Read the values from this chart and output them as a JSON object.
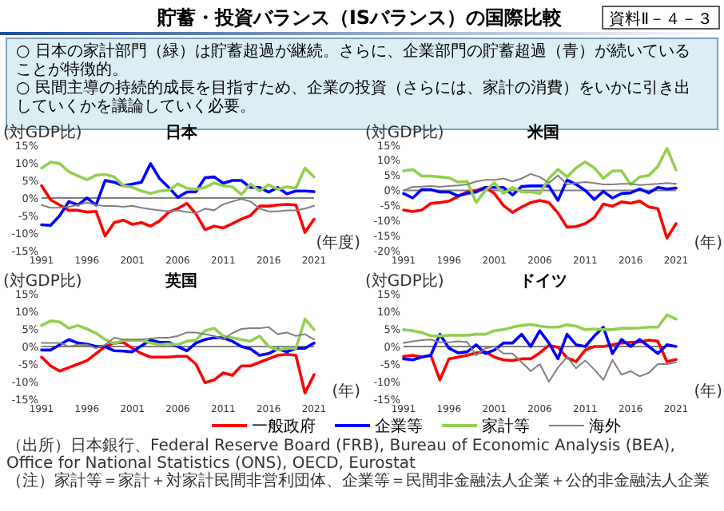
{
  "chart_data": [
    {
      "type": "other",
      "title": "貯蓄・投資バランス（ISバランス）の国際比較",
      "annotations": [
        "資料Ⅱ－４－３",
        "○ 日本の家計部門（緑）は貯蓄超過が継続。さらに、企業部門の貯蓄超過（青）が続いていることが特徴的。",
        "○ 民間主導の持続的成長を目指すため、企業の投資（さらには、家計の消費）をいかに引き出していくかを議論していく必要。",
        "（出所）日本銀行、Federal Reserve Board (FRB), Bureau of Economic Analysis (BEA), Office for National Statistics (ONS), OECD, Eurostat",
        "（注）家計等＝家計＋対家計民間非営利団体、企業等＝民間非金融法人企業＋公的非金融法人企業"
      ]
    },
    {
      "type": "line",
      "title": "日本",
      "ylabel": "(対GDP比)",
      "xlabel": "(年度)",
      "legend": "bottom",
      "x": [
        1991,
        1992,
        1993,
        1994,
        1995,
        1996,
        1997,
        1998,
        1999,
        2000,
        2001,
        2002,
        2003,
        2004,
        2005,
        2006,
        2007,
        2008,
        2009,
        2010,
        2011,
        2012,
        2013,
        2014,
        2015,
        2016,
        2017,
        2018,
        2019,
        2020,
        2021
      ],
      "xlim": [
        1991,
        2021
      ],
      "xticks": [
        1991,
        1996,
        2001,
        2006,
        2011,
        2016,
        2021
      ],
      "ylim": [
        -15,
        15
      ],
      "yticks": [
        {
          "value": -15,
          "label": "-15%"
        },
        {
          "value": -10,
          "label": "-10%"
        },
        {
          "value": -5,
          "label": "-5%"
        },
        {
          "value": 0,
          "label": "0%"
        },
        {
          "value": 5,
          "label": "5%"
        },
        {
          "value": 10,
          "label": "10%"
        },
        {
          "value": 15,
          "label": "15%"
        }
      ],
      "ref_lines": [
        {
          "axis": "y",
          "value": 0,
          "color": "#808080"
        }
      ],
      "series": [
        {
          "name": "一般政府",
          "color": "#ff0000",
          "values": [
            3.5,
            -0.5,
            -2,
            -3.5,
            -3.5,
            -4,
            -3.8,
            -10.8,
            -7,
            -6.3,
            -7.5,
            -7,
            -8,
            -6.5,
            -4,
            -3,
            -1.5,
            -4.5,
            -9,
            -8,
            -8.5,
            -7.3,
            -6,
            -5,
            -2.3,
            -2.3,
            -2,
            -1.8,
            -2,
            -9.8,
            -6
          ]
        },
        {
          "name": "企業等",
          "color": "#0000ff",
          "values": [
            -7.6,
            -7.8,
            -5,
            -1,
            -2,
            0,
            -2,
            5,
            4.5,
            3.5,
            4,
            4.5,
            9.8,
            5.5,
            3,
            0.2,
            1.7,
            1.8,
            5.8,
            6,
            4.2,
            5,
            5,
            3,
            3,
            1.7,
            3,
            1.2,
            2,
            2,
            1.8
          ]
        },
        {
          "name": "家計等",
          "color": "#92d050",
          "values": [
            8.5,
            10.2,
            9.8,
            7.5,
            6.3,
            5.2,
            6.5,
            6.7,
            6,
            3.5,
            3,
            2,
            1.3,
            2,
            2.2,
            4,
            2.8,
            2.5,
            3,
            4.3,
            3.5,
            3.2,
            1,
            4,
            2,
            3.8,
            2.5,
            3.2,
            2.8,
            8.5,
            6
          ]
        },
        {
          "name": "海外",
          "color": "#808080",
          "values": [
            -2,
            -2.8,
            -2.7,
            -2.5,
            -2,
            -1.3,
            -2,
            -2.3,
            -2.3,
            -2.5,
            -2.2,
            -2.8,
            -3.2,
            -3.5,
            -3.8,
            -3.5,
            -4,
            -4.3,
            -3,
            -3.5,
            -1.8,
            -1,
            -0.3,
            -1,
            -3,
            -3.8,
            -3.8,
            -3.5,
            -3.5,
            -3,
            -2.2
          ]
        }
      ]
    },
    {
      "type": "line",
      "title": "米国",
      "ylabel": "(対GDP比)",
      "xlabel": "(年)",
      "x": [
        1991,
        1992,
        1993,
        1994,
        1995,
        1996,
        1997,
        1998,
        1999,
        2000,
        2001,
        2002,
        2003,
        2004,
        2005,
        2006,
        2007,
        2008,
        2009,
        2010,
        2011,
        2012,
        2013,
        2014,
        2015,
        2016,
        2017,
        2018,
        2019,
        2020,
        2021
      ],
      "xlim": [
        1991,
        2021
      ],
      "xticks": [
        1991,
        1996,
        2001,
        2006,
        2011,
        2016,
        2021
      ],
      "ylim": [
        -20,
        15
      ],
      "yticks": [
        {
          "value": -20,
          "label": "-20%"
        },
        {
          "value": -15,
          "label": "-15%"
        },
        {
          "value": -10,
          "label": "-10%"
        },
        {
          "value": -5,
          "label": "-5%"
        },
        {
          "value": 0,
          "label": "0%"
        },
        {
          "value": 5,
          "label": "5%"
        },
        {
          "value": 10,
          "label": "10%"
        },
        {
          "value": 15,
          "label": "15%"
        }
      ],
      "ref_lines": [
        {
          "axis": "y",
          "value": 0,
          "color": "#808080"
        }
      ],
      "series": [
        {
          "color": "#ff0000",
          "values": [
            -6.5,
            -7,
            -6.5,
            -4.3,
            -4,
            -3.5,
            -2,
            -0.5,
            0,
            1,
            -1,
            -5,
            -7.3,
            -5.5,
            -4,
            -3.3,
            -4,
            -7.5,
            -12.2,
            -12,
            -11,
            -9,
            -4.5,
            -5.2,
            -3.8,
            -4.2,
            -3.5,
            -5.5,
            -6,
            -15.8,
            -11
          ]
        },
        {
          "color": "#0000ff",
          "values": [
            -1,
            -2.5,
            0.3,
            0.3,
            -0.5,
            -0.5,
            -1.8,
            -1,
            -0.5,
            1,
            1,
            1,
            -1.5,
            1.3,
            1.5,
            1.5,
            1.5,
            -3.3,
            3.5,
            2,
            0,
            -3,
            -0.3,
            -2.5,
            -1,
            -0.8,
            0.5,
            -0.8,
            1,
            0.5,
            0.8
          ]
        },
        {
          "color": "#92d050",
          "values": [
            6.5,
            7,
            4.8,
            4.8,
            4.5,
            4.2,
            2.8,
            3,
            -4,
            0,
            2.5,
            -1,
            1,
            -0.5,
            -0.5,
            -1,
            4,
            7,
            4.5,
            7.5,
            9.5,
            7.5,
            4,
            6.5,
            6.5,
            2,
            4.5,
            5,
            8,
            14,
            6.8
          ]
        },
        {
          "color": "#808080",
          "values": [
            0,
            1.2,
            1.3,
            1.5,
            1.2,
            1.5,
            1.7,
            2,
            3,
            3.5,
            3.5,
            4,
            3,
            4,
            5.5,
            4.5,
            2.5,
            5,
            2,
            2.5,
            2.8,
            2.5,
            2,
            2,
            2.2,
            2.2,
            1.8,
            2,
            2.2,
            2.5,
            2.2
          ]
        }
      ]
    },
    {
      "type": "line",
      "title": "英国",
      "ylabel": "(対GDP比)",
      "xlabel": "(年)",
      "x": [
        1991,
        1992,
        1993,
        1994,
        1995,
        1996,
        1997,
        1998,
        1999,
        2000,
        2001,
        2002,
        2003,
        2004,
        2005,
        2006,
        2007,
        2008,
        2009,
        2010,
        2011,
        2012,
        2013,
        2014,
        2015,
        2016,
        2017,
        2018,
        2019,
        2020,
        2021
      ],
      "xlim": [
        1991,
        2021
      ],
      "xticks": [
        1991,
        1996,
        2001,
        2006,
        2011,
        2016,
        2021
      ],
      "ylim": [
        -15,
        15
      ],
      "yticks": [
        {
          "value": -15,
          "label": "-15%"
        },
        {
          "value": -10,
          "label": "-10%"
        },
        {
          "value": -5,
          "label": "-5%"
        },
        {
          "value": 0,
          "label": "0%"
        },
        {
          "value": 5,
          "label": "5%"
        },
        {
          "value": 10,
          "label": "10%"
        },
        {
          "value": 15,
          "label": "15%"
        }
      ],
      "ref_lines": [
        {
          "axis": "y",
          "value": 0,
          "color": "#808080"
        }
      ],
      "series": [
        {
          "color": "#ff0000",
          "values": [
            -3,
            -5.5,
            -7,
            -6,
            -5,
            -4,
            -2,
            0,
            1,
            1.2,
            -0.5,
            -2,
            -3,
            -3,
            -3,
            -2.8,
            -2.8,
            -5,
            -10.3,
            -9.5,
            -7.5,
            -8.2,
            -5.5,
            -5.5,
            -4.5,
            -3.5,
            -2.5,
            -2.2,
            -2.5,
            -13.2,
            -8
          ]
        },
        {
          "color": "#0000ff",
          "values": [
            -1,
            -1,
            0.5,
            2,
            1,
            0.7,
            0,
            0,
            -1.2,
            -1.3,
            -1.5,
            0.2,
            1.8,
            1.2,
            1.2,
            0,
            -1.2,
            1,
            2,
            2.5,
            2.5,
            1.5,
            0,
            -0.7,
            -2.5,
            -2,
            -0.7,
            -1.5,
            -0.5,
            -0.5,
            1
          ]
        },
        {
          "color": "#92d050",
          "values": [
            6,
            7.3,
            7,
            5.2,
            6,
            5,
            3.8,
            2,
            0.8,
            1.8,
            1.8,
            1.8,
            1,
            0.5,
            0.8,
            0.5,
            1.5,
            1.8,
            4.5,
            5.2,
            3,
            2.5,
            2,
            1.5,
            3,
            0,
            -1,
            -0.5,
            -0.5,
            7.8,
            4.8
          ]
        },
        {
          "color": "#808080",
          "values": [
            1,
            1,
            1,
            0,
            0.5,
            0.5,
            -0.5,
            0.5,
            2.5,
            2,
            2,
            2,
            2.3,
            2.5,
            2.5,
            3,
            4,
            4,
            3.5,
            3,
            2,
            3.8,
            5,
            5.2,
            5.2,
            5.5,
            3.5,
            4,
            3,
            3.5,
            2
          ]
        }
      ]
    },
    {
      "type": "line",
      "title": "ドイツ",
      "ylabel": "(対GDP比)",
      "xlabel": "(年)",
      "x": [
        1991,
        1992,
        1993,
        1994,
        1995,
        1996,
        1997,
        1998,
        1999,
        2000,
        2001,
        2002,
        2003,
        2004,
        2005,
        2006,
        2007,
        2008,
        2009,
        2010,
        2011,
        2012,
        2013,
        2014,
        2015,
        2016,
        2017,
        2018,
        2019,
        2020,
        2021
      ],
      "xlim": [
        1991,
        2021
      ],
      "xticks": [
        1991,
        1996,
        2001,
        2006,
        2011,
        2016,
        2021
      ],
      "ylim": [
        -15,
        15
      ],
      "yticks": [
        {
          "value": -15,
          "label": "-15%"
        },
        {
          "value": -10,
          "label": "-10%"
        },
        {
          "value": -5,
          "label": "-5%"
        },
        {
          "value": 0,
          "label": "0%"
        },
        {
          "value": 5,
          "label": "5%"
        },
        {
          "value": 10,
          "label": "10%"
        },
        {
          "value": 15,
          "label": "15%"
        }
      ],
      "ref_lines": [
        {
          "axis": "y",
          "value": 0,
          "color": "#808080"
        }
      ],
      "series": [
        {
          "color": "#ff0000",
          "values": [
            -2.8,
            -2.5,
            -3,
            -2.5,
            -9.5,
            -3.5,
            -3,
            -2.5,
            -1.8,
            -1.5,
            -3,
            -3.8,
            -4,
            -3.5,
            -3.5,
            -1.8,
            0.3,
            -0.2,
            -3.2,
            -4.3,
            -1,
            0,
            0,
            0.5,
            1,
            1.2,
            1.3,
            1.8,
            1.5,
            -4.3,
            -3.7
          ]
        },
        {
          "color": "#0000ff",
          "values": [
            -3.5,
            -3.8,
            -3,
            -2.5,
            3.5,
            -0.5,
            -1.8,
            -1.5,
            0.5,
            -2,
            -1,
            1,
            1,
            3.5,
            0,
            4.5,
            1,
            -3.5,
            3.5,
            0.5,
            0,
            3,
            5.5,
            -2,
            2,
            0,
            2,
            0,
            -2,
            0.5,
            0
          ]
        },
        {
          "color": "#92d050",
          "values": [
            4.8,
            4.5,
            4,
            3,
            3,
            3.2,
            3.2,
            3.2,
            3.5,
            3.5,
            4.5,
            4.8,
            5.5,
            6,
            6.3,
            5.8,
            5.5,
            5.5,
            6.2,
            5.8,
            4.8,
            5,
            4.8,
            4.8,
            5.2,
            5.2,
            5.3,
            5.5,
            5.5,
            9,
            7.8
          ]
        },
        {
          "color": "#808080",
          "values": [
            1,
            1.5,
            1.8,
            2,
            1.2,
            1.2,
            1.5,
            1.3,
            -2.5,
            -0.5,
            0,
            -2,
            -2,
            -4.5,
            -7,
            -5,
            -10,
            -6,
            -3,
            -6.2,
            -4,
            -6.5,
            -9.5,
            -3.8,
            -8,
            -7,
            -8.5,
            -7.5,
            -5,
            -5,
            -4.5
          ]
        }
      ]
    }
  ]
}
